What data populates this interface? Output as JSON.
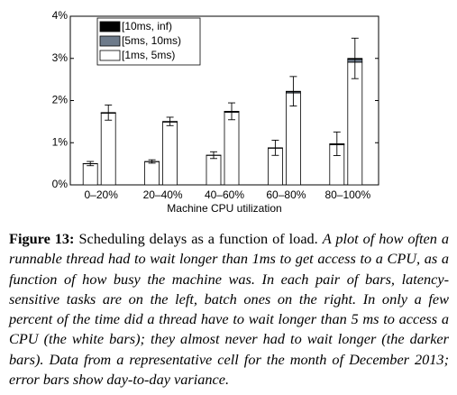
{
  "chart_data": {
    "type": "grouped-stacked-bar",
    "categories": [
      "0–20%",
      "20–40%",
      "40–60%",
      "60–80%",
      "80–100%"
    ],
    "x_label": "Machine CPU utilization",
    "series": [
      {
        "name": "[10ms, inf)",
        "color": "#000000",
        "values": [
          [
            0,
            0.005
          ],
          [
            0,
            0.005
          ],
          [
            0,
            0.005
          ],
          [
            0,
            0.01
          ],
          [
            0.005,
            0.02
          ]
        ]
      },
      {
        "name": "[5ms, 10ms)",
        "color": "#6e7b8b",
        "values": [
          [
            0.005,
            0.01
          ],
          [
            0.005,
            0.01
          ],
          [
            0.005,
            0.02
          ],
          [
            0.01,
            0.03
          ],
          [
            0.02,
            0.07
          ]
        ]
      },
      {
        "name": "[1ms, 5ms)",
        "color": "#ffffff",
        "values": [
          [
            0.5,
            1.7
          ],
          [
            0.55,
            1.49
          ],
          [
            0.7,
            1.72
          ],
          [
            0.87,
            2.18
          ],
          [
            0.95,
            2.91
          ]
        ]
      }
    ],
    "errors": [
      [
        0.05,
        0.18
      ],
      [
        0.04,
        0.1
      ],
      [
        0.08,
        0.2
      ],
      [
        0.18,
        0.35
      ],
      [
        0.28,
        0.48
      ]
    ],
    "ylim": [
      0,
      4
    ],
    "yticks": [
      {
        "value": 0,
        "label": "0%"
      },
      {
        "value": 1,
        "label": "1%"
      },
      {
        "value": 2,
        "label": "2%"
      },
      {
        "value": 3,
        "label": "3%"
      },
      {
        "value": 4,
        "label": "4%"
      }
    ],
    "legend": "upper left"
  },
  "caption": {
    "label": "Figure 13:",
    "title": "Scheduling delays as a function of load.",
    "text": "A plot of how often a runnable thread had to wait longer than 1ms to get access to a CPU, as a function of how busy the machine was. In each pair of bars, latency-sensitive tasks are on the left, batch ones on the right. In only a few percent of the time did a thread have to wait longer than 5 ms to access a CPU (the white bars); they almost never had to wait longer (the darker bars). Data from a representative cell for the month of December 2013; error bars show day-to-day variance."
  }
}
